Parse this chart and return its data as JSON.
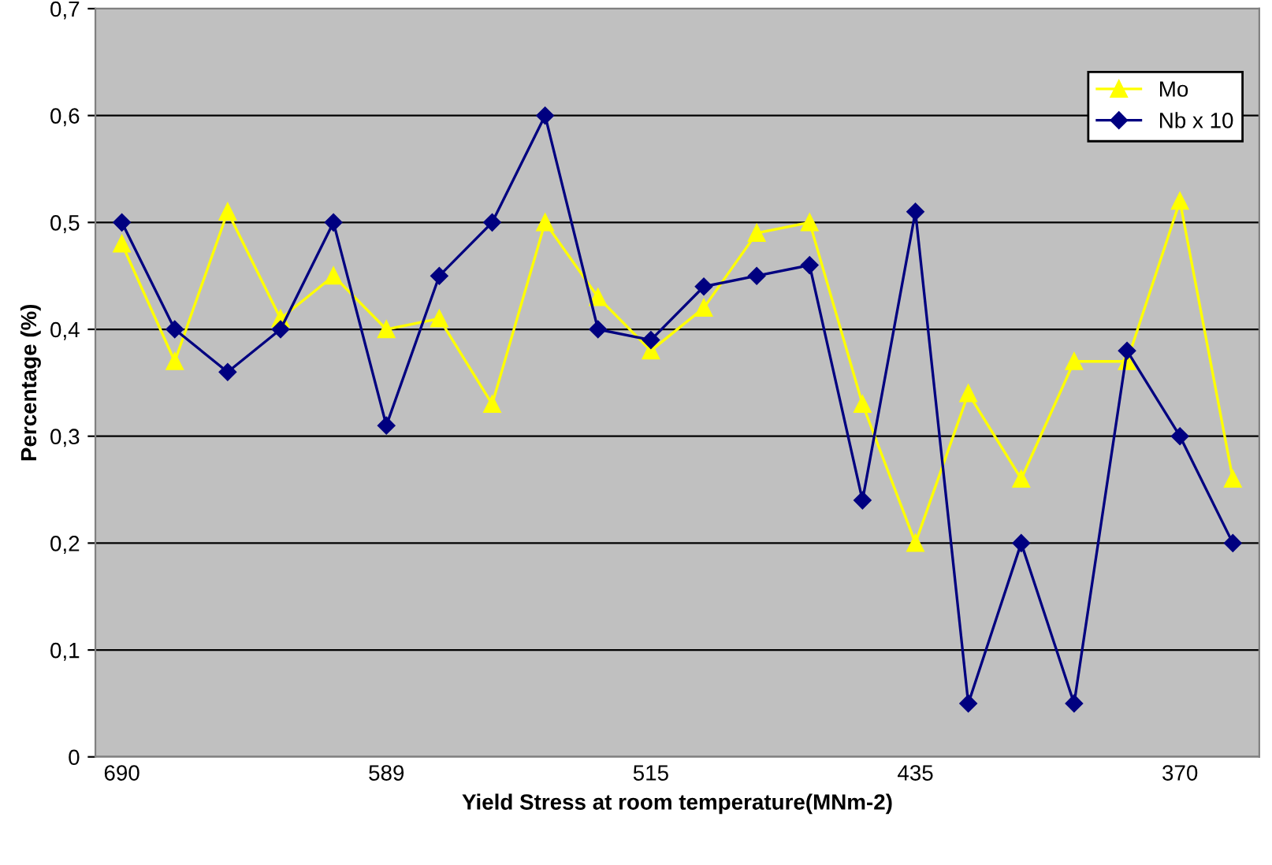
{
  "chart_data": {
    "type": "line",
    "xlabel": "Yield Stress at room temperature(MNm-2)",
    "ylabel": "Percentage (%)",
    "categories": [
      "690",
      null,
      null,
      null,
      null,
      "589",
      null,
      null,
      null,
      null,
      "515",
      null,
      null,
      null,
      null,
      "435",
      null,
      null,
      null,
      null,
      "370",
      null
    ],
    "series": [
      {
        "name": "Mo",
        "color": "#ffff00",
        "marker": "triangle",
        "values": [
          0.48,
          0.37,
          0.51,
          0.41,
          0.45,
          0.4,
          0.41,
          0.33,
          0.5,
          0.43,
          0.38,
          0.42,
          0.49,
          0.5,
          0.33,
          0.2,
          0.34,
          0.26,
          0.37,
          0.37,
          0.52,
          0.26
        ]
      },
      {
        "name": "Nb x 10",
        "color": "#000080",
        "marker": "diamond",
        "values": [
          0.5,
          0.4,
          0.36,
          0.4,
          0.5,
          0.31,
          0.45,
          0.5,
          0.6,
          0.4,
          0.39,
          0.44,
          0.45,
          0.46,
          0.24,
          0.51,
          0.05,
          0.2,
          0.05,
          0.38,
          0.3,
          0.2
        ]
      }
    ],
    "ylim": [
      0,
      0.7
    ],
    "yticks": [
      {
        "value": 0,
        "label": "0"
      },
      {
        "value": 0.1,
        "label": "0,1"
      },
      {
        "value": 0.2,
        "label": "0,2"
      },
      {
        "value": 0.3,
        "label": "0,3"
      },
      {
        "value": 0.4,
        "label": "0,4"
      },
      {
        "value": 0.5,
        "label": "0,5"
      },
      {
        "value": 0.6,
        "label": "0,6"
      },
      {
        "value": 0.7,
        "label": "0,7"
      }
    ],
    "grid": "y",
    "legend": "top right",
    "line_style": "solid"
  }
}
